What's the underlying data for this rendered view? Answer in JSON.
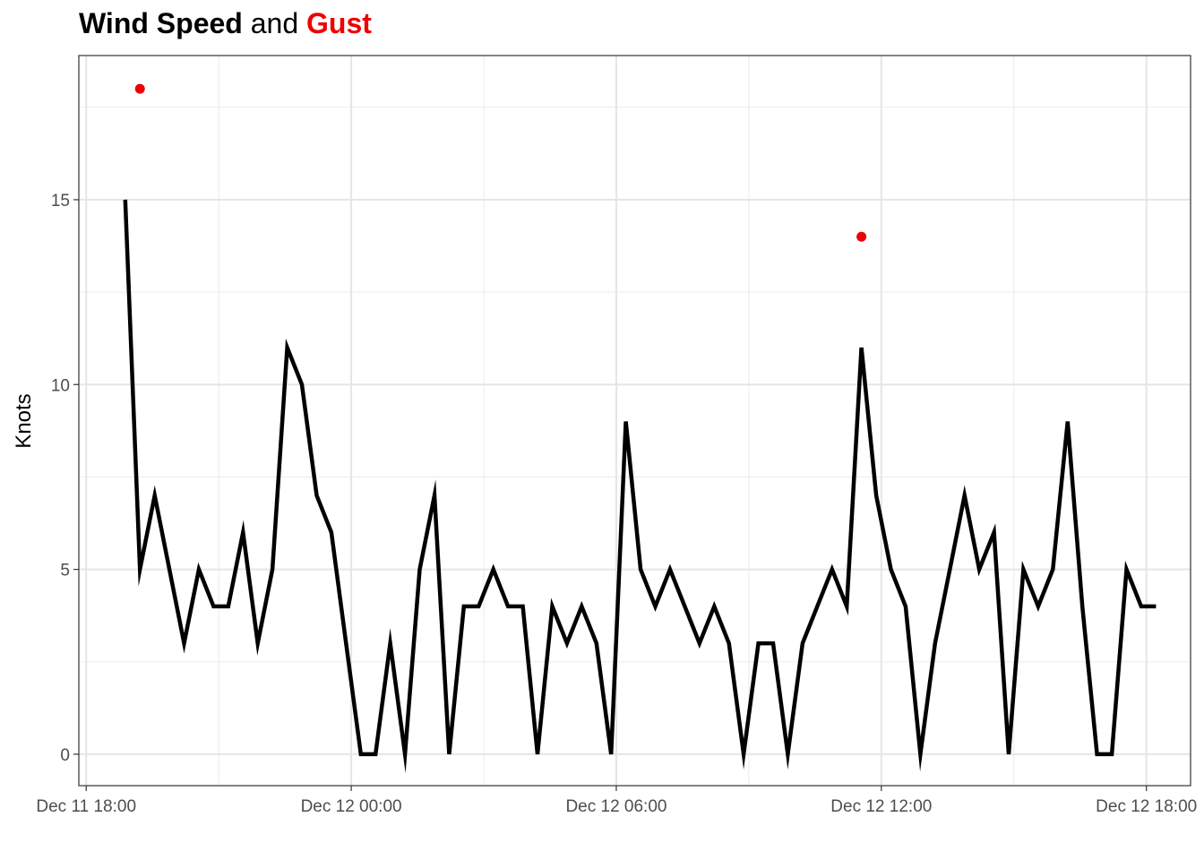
{
  "title": {
    "part1": "Wind Speed",
    "part2": " and ",
    "part3": "Gust",
    "part1_color": "#000000",
    "part3_color": "#ee0000"
  },
  "chart_data": {
    "type": "line",
    "ylabel": "Knots",
    "xlabel": "",
    "ylim": [
      -0.85,
      18.9
    ],
    "yticks": [
      0,
      5,
      10,
      15
    ],
    "xlim": [
      "2024-12-11 17:50",
      "2024-12-12 19:00"
    ],
    "xticks": [
      {
        "t": "2024-12-11 18:00",
        "label": "Dec 11 18:00"
      },
      {
        "t": "2024-12-12 00:00",
        "label": "Dec 12 00:00"
      },
      {
        "t": "2024-12-12 06:00",
        "label": "Dec 12 06:00"
      },
      {
        "t": "2024-12-12 12:00",
        "label": "Dec 12 12:00"
      },
      {
        "t": "2024-12-12 18:00",
        "label": "Dec 12 18:00"
      }
    ],
    "grid": true,
    "legend": "none",
    "series": [
      {
        "color": "#000000",
        "style": "line",
        "x": [
          "2024-12-11 18:53",
          "2024-12-11 19:13",
          "2024-12-11 19:33",
          "2024-12-11 19:53",
          "2024-12-11 20:13",
          "2024-12-11 20:33",
          "2024-12-11 20:53",
          "2024-12-11 21:13",
          "2024-12-11 21:33",
          "2024-12-11 21:53",
          "2024-12-11 22:13",
          "2024-12-11 22:33",
          "2024-12-11 22:53",
          "2024-12-11 23:13",
          "2024-12-11 23:33",
          "2024-12-11 23:53",
          "2024-12-12 00:13",
          "2024-12-12 00:33",
          "2024-12-12 00:53",
          "2024-12-12 01:13",
          "2024-12-12 01:33",
          "2024-12-12 01:53",
          "2024-12-12 02:13",
          "2024-12-12 02:33",
          "2024-12-12 02:53",
          "2024-12-12 03:13",
          "2024-12-12 03:33",
          "2024-12-12 03:53",
          "2024-12-12 04:13",
          "2024-12-12 04:33",
          "2024-12-12 04:53",
          "2024-12-12 05:13",
          "2024-12-12 05:33",
          "2024-12-12 05:53",
          "2024-12-12 06:13",
          "2024-12-12 06:33",
          "2024-12-12 06:53",
          "2024-12-12 07:13",
          "2024-12-12 07:33",
          "2024-12-12 07:53",
          "2024-12-12 08:13",
          "2024-12-12 08:33",
          "2024-12-12 08:53",
          "2024-12-12 09:13",
          "2024-12-12 09:33",
          "2024-12-12 09:53",
          "2024-12-12 10:13",
          "2024-12-12 10:33",
          "2024-12-12 10:53",
          "2024-12-12 11:13",
          "2024-12-12 11:33",
          "2024-12-12 11:53",
          "2024-12-12 12:13",
          "2024-12-12 12:33",
          "2024-12-12 12:53",
          "2024-12-12 13:13",
          "2024-12-12 13:33",
          "2024-12-12 13:53",
          "2024-12-12 14:13",
          "2024-12-12 14:33",
          "2024-12-12 14:53",
          "2024-12-12 15:13",
          "2024-12-12 15:33",
          "2024-12-12 15:53",
          "2024-12-12 16:13",
          "2024-12-12 16:33",
          "2024-12-12 16:53",
          "2024-12-12 17:13",
          "2024-12-12 17:33",
          "2024-12-12 17:53",
          "2024-12-12 18:13"
        ],
        "y": [
          15,
          5,
          7,
          5,
          3,
          5,
          4,
          4,
          6,
          3,
          5,
          11,
          10,
          7,
          6,
          3,
          0,
          0,
          3,
          0,
          5,
          7,
          0,
          4,
          4,
          5,
          4,
          4,
          0,
          4,
          3,
          4,
          3,
          0,
          9,
          5,
          4,
          5,
          4,
          3,
          4,
          3,
          0,
          3,
          3,
          0,
          3,
          4,
          5,
          4,
          11,
          7,
          5,
          4,
          0,
          3,
          5,
          7,
          5,
          6,
          0,
          5,
          4,
          5,
          9,
          4,
          0,
          0,
          5,
          4,
          4
        ]
      },
      {
        "color": "#ee0000",
        "style": "points",
        "x": [
          "2024-12-11 19:13",
          "2024-12-12 11:33"
        ],
        "y": [
          18,
          14
        ]
      }
    ]
  }
}
